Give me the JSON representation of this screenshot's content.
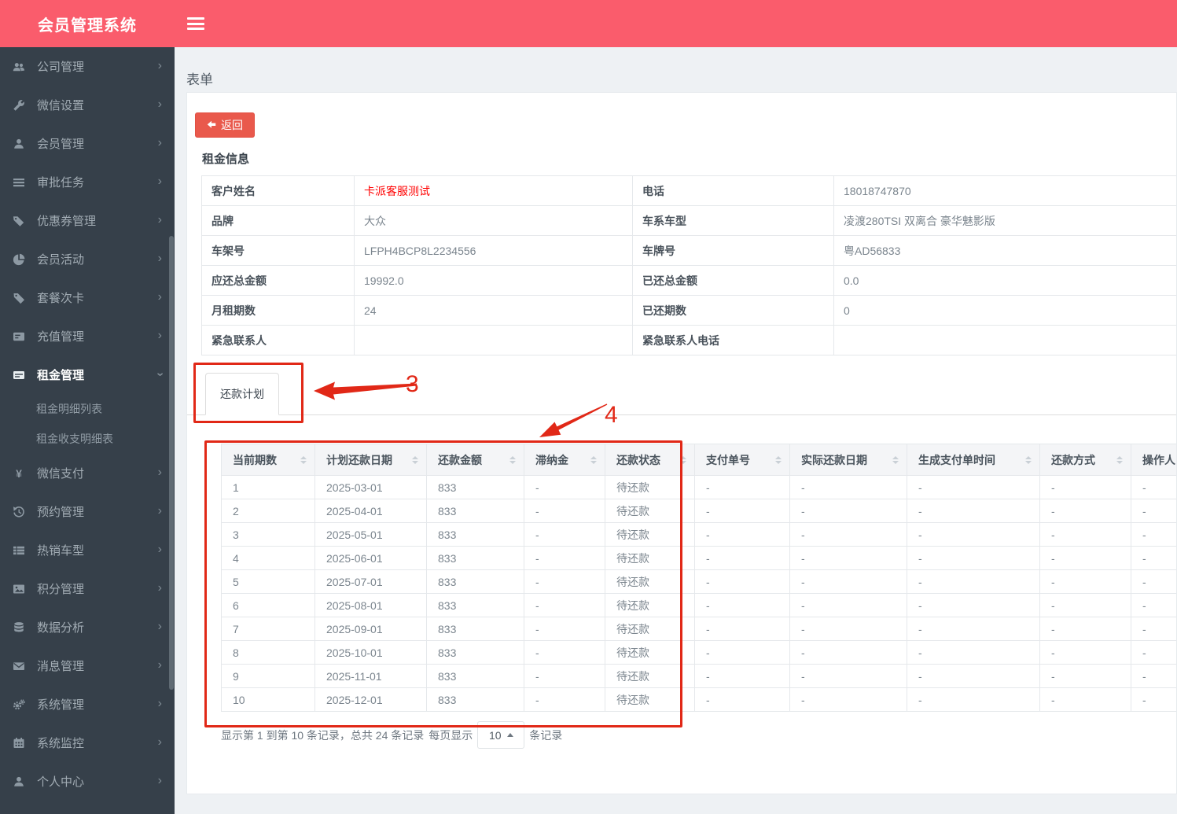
{
  "app": {
    "title": "会员管理系统"
  },
  "sidebar": {
    "items": [
      {
        "key": "company-mgmt",
        "label": "公司管理",
        "icon": "users-icon"
      },
      {
        "key": "wechat-settings",
        "label": "微信设置",
        "icon": "wrench-icon"
      },
      {
        "key": "member-mgmt",
        "label": "会员管理",
        "icon": "user-icon"
      },
      {
        "key": "approval-tasks",
        "label": "审批任务",
        "icon": "list-icon"
      },
      {
        "key": "coupon-mgmt",
        "label": "优惠券管理",
        "icon": "tags-icon"
      },
      {
        "key": "member-activity",
        "label": "会员活动",
        "icon": "pie-chart-icon"
      },
      {
        "key": "package-card",
        "label": "套餐次卡",
        "icon": "tag-icon"
      },
      {
        "key": "recharge-mgmt",
        "label": "充值管理",
        "icon": "card-list-icon"
      },
      {
        "key": "rent-mgmt",
        "label": "租金管理",
        "icon": "credit-card-icon",
        "active": true,
        "expanded": true,
        "children": [
          {
            "key": "rent-detail-list",
            "label": "租金明细列表"
          },
          {
            "key": "rent-income-expense",
            "label": "租金收支明细表"
          }
        ]
      },
      {
        "key": "wechat-pay",
        "label": "微信支付",
        "icon": "yen-icon"
      },
      {
        "key": "reservation-mgmt",
        "label": "预约管理",
        "icon": "history-icon"
      },
      {
        "key": "hot-models",
        "label": "热销车型",
        "icon": "th-list-icon"
      },
      {
        "key": "points-mgmt",
        "label": "积分管理",
        "icon": "image-icon"
      },
      {
        "key": "data-analysis",
        "label": "数据分析",
        "icon": "database-icon"
      },
      {
        "key": "message-mgmt",
        "label": "消息管理",
        "icon": "envelope-icon"
      },
      {
        "key": "system-mgmt",
        "label": "系统管理",
        "icon": "gears-icon"
      },
      {
        "key": "system-monitor",
        "label": "系统监控",
        "icon": "calendar-icon"
      },
      {
        "key": "personal-center",
        "label": "个人中心",
        "icon": "person-icon"
      }
    ]
  },
  "page": {
    "breadcrumb": "表单",
    "back_label": "返回",
    "section_title": "租金信息"
  },
  "info": {
    "rows": [
      {
        "label_left": "客户姓名",
        "value_left": "卡派客服测试",
        "left_red": true,
        "label_right": "电话",
        "value_right": "18018747870"
      },
      {
        "label_left": "品牌",
        "value_left": "大众",
        "left_red": false,
        "label_right": "车系车型",
        "value_right": "凌渡280TSI 双离合 豪华魅影版"
      },
      {
        "label_left": "车架号",
        "value_left": "LFPH4BCP8L2234556",
        "left_red": false,
        "label_right": "车牌号",
        "value_right": "粤AD56833"
      },
      {
        "label_left": "应还总金额",
        "value_left": "19992.0",
        "left_red": false,
        "label_right": "已还总金额",
        "value_right": "0.0"
      },
      {
        "label_left": "月租期数",
        "value_left": "24",
        "left_red": false,
        "label_right": "已还期数",
        "value_right": "0"
      },
      {
        "label_left": "紧急联系人",
        "value_left": "",
        "left_red": false,
        "label_right": "紧急联系人电话",
        "value_right": ""
      }
    ]
  },
  "tab": {
    "label": "还款计划"
  },
  "plan_table": {
    "columns": [
      {
        "key": "current-period",
        "label": "当前期数",
        "sortable": true
      },
      {
        "key": "planned-date",
        "label": "计划还款日期",
        "sortable": true
      },
      {
        "key": "amount",
        "label": "还款金额",
        "sortable": true
      },
      {
        "key": "late-fee",
        "label": "滞纳金",
        "sortable": true
      },
      {
        "key": "status",
        "label": "还款状态",
        "sortable": true
      },
      {
        "key": "pay-order-no",
        "label": "支付单号",
        "sortable": true
      },
      {
        "key": "actual-date",
        "label": "实际还款日期",
        "sortable": true
      },
      {
        "key": "pay-order-time",
        "label": "生成支付单时间",
        "sortable": true
      },
      {
        "key": "method",
        "label": "还款方式",
        "sortable": true
      },
      {
        "key": "operator",
        "label": "操作人",
        "sortable": false
      }
    ],
    "rows": [
      [
        "1",
        "2025-03-01",
        "833",
        "-",
        "待还款",
        "-",
        "-",
        "-",
        "-",
        "-"
      ],
      [
        "2",
        "2025-04-01",
        "833",
        "-",
        "待还款",
        "-",
        "-",
        "-",
        "-",
        "-"
      ],
      [
        "3",
        "2025-05-01",
        "833",
        "-",
        "待还款",
        "-",
        "-",
        "-",
        "-",
        "-"
      ],
      [
        "4",
        "2025-06-01",
        "833",
        "-",
        "待还款",
        "-",
        "-",
        "-",
        "-",
        "-"
      ],
      [
        "5",
        "2025-07-01",
        "833",
        "-",
        "待还款",
        "-",
        "-",
        "-",
        "-",
        "-"
      ],
      [
        "6",
        "2025-08-01",
        "833",
        "-",
        "待还款",
        "-",
        "-",
        "-",
        "-",
        "-"
      ],
      [
        "7",
        "2025-09-01",
        "833",
        "-",
        "待还款",
        "-",
        "-",
        "-",
        "-",
        "-"
      ],
      [
        "8",
        "2025-10-01",
        "833",
        "-",
        "待还款",
        "-",
        "-",
        "-",
        "-",
        "-"
      ],
      [
        "9",
        "2025-11-01",
        "833",
        "-",
        "待还款",
        "-",
        "-",
        "-",
        "-",
        "-"
      ],
      [
        "10",
        "2025-12-01",
        "833",
        "-",
        "待还款",
        "-",
        "-",
        "-",
        "-",
        "-"
      ]
    ]
  },
  "pagination": {
    "summary": "显示第 1 到第 10 条记录，总共 24 条记录",
    "per_page_label": "每页显示",
    "per_page_value": "10",
    "records_suffix": "条记录"
  },
  "annotations": {
    "color": "#e12817",
    "label_3": "3",
    "label_4": "4"
  }
}
